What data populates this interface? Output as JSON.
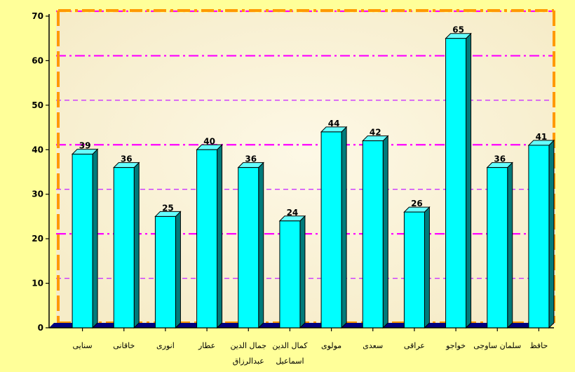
{
  "chart_data": {
    "type": "bar",
    "categories": [
      "سنایی",
      "خاقانی",
      "انوری",
      "عطار",
      "جمال الدین عبدالرزاق",
      "کمال الدین اسماعیل",
      "مولوی",
      "سعدی",
      "عراقی",
      "خواجو",
      "سلمان ساوجی",
      "حافظ"
    ],
    "category_lines": [
      [
        "سنایی"
      ],
      [
        "خاقانی"
      ],
      [
        "انوری"
      ],
      [
        "عطار"
      ],
      [
        "جمال الدین",
        "عبدالرزاق"
      ],
      [
        "کمال الدین",
        "اسماعیل"
      ],
      [
        "مولوی"
      ],
      [
        "سعدی"
      ],
      [
        "عراقی"
      ],
      [
        "خواجو"
      ],
      [
        "سلمان ساوجی"
      ],
      [
        "حافظ"
      ]
    ],
    "values": [
      39,
      36,
      25,
      40,
      36,
      24,
      44,
      42,
      26,
      65,
      36,
      41
    ],
    "data_labels": [
      "39",
      "36",
      "25",
      "40",
      "36",
      "24",
      "44",
      "42",
      "26",
      "65",
      "36",
      "41"
    ],
    "ylim": [
      0,
      70
    ],
    "yticks": [
      "0",
      "10",
      "20",
      "30",
      "40",
      "50",
      "60",
      "70"
    ],
    "grid": true,
    "title": "",
    "xlabel": "",
    "ylabel": "",
    "style": "3d-bar",
    "colors": {
      "page_background": "#ffff99",
      "plot_background": "#fbf3d6",
      "bar_front": "#00ffff",
      "bar_side": "#007b7b",
      "bar_top": "#66ffff",
      "bar_outline": "#000000",
      "gridline_major": "#ff00ff",
      "gridline_minor": "#cc33ff",
      "plot_border": "#ff9900",
      "floor": "#00007f"
    }
  }
}
